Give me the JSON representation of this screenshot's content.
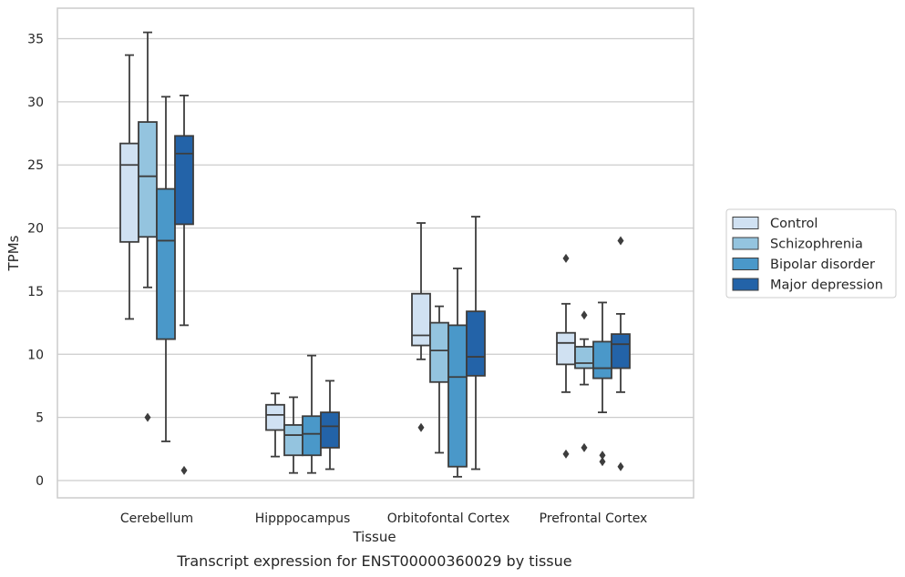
{
  "chart_data": {
    "type": "boxplot",
    "caption": "Transcript expression for ENST00000360029 by tissue",
    "xlabel": "Tissue",
    "ylabel": "TPMs",
    "ylim": [
      -1.4,
      37.3
    ],
    "yticks": [
      0,
      5,
      10,
      15,
      20,
      25,
      30,
      35
    ],
    "grid": "horizontal",
    "legend_position": "right",
    "categories": [
      "Cerebellum",
      "Hipppocampus",
      "Orbitofontal Cortex",
      "Prefrontal Cortex"
    ],
    "series": [
      {
        "name": "Control",
        "color": "#d0e1f2",
        "boxes": [
          {
            "whisker_low": 12.8,
            "q1": 18.9,
            "median": 25.0,
            "q3": 26.7,
            "whisker_high": 33.7,
            "outliers": []
          },
          {
            "whisker_low": 1.9,
            "q1": 4.0,
            "median": 5.2,
            "q3": 6.0,
            "whisker_high": 6.9,
            "outliers": []
          },
          {
            "whisker_low": 9.6,
            "q1": 10.7,
            "median": 11.5,
            "q3": 14.8,
            "whisker_high": 20.4,
            "outliers": [
              4.2
            ]
          },
          {
            "whisker_low": 7.0,
            "q1": 9.2,
            "median": 10.9,
            "q3": 11.7,
            "whisker_high": 14.0,
            "outliers": [
              17.6,
              2.1
            ]
          }
        ]
      },
      {
        "name": "Schizophrenia",
        "color": "#94c4df",
        "boxes": [
          {
            "whisker_low": 15.3,
            "q1": 19.3,
            "median": 24.1,
            "q3": 28.4,
            "whisker_high": 35.5,
            "outliers": [
              5.0
            ]
          },
          {
            "whisker_low": 0.6,
            "q1": 2.0,
            "median": 3.6,
            "q3": 4.4,
            "whisker_high": 6.6,
            "outliers": []
          },
          {
            "whisker_low": 2.2,
            "q1": 7.8,
            "median": 10.3,
            "q3": 12.5,
            "whisker_high": 13.8,
            "outliers": []
          },
          {
            "whisker_low": 7.6,
            "q1": 8.9,
            "median": 9.3,
            "q3": 10.6,
            "whisker_high": 11.2,
            "outliers": [
              13.1,
              2.6
            ]
          }
        ]
      },
      {
        "name": "Bipolar disorder",
        "color": "#4a98c9",
        "boxes": [
          {
            "whisker_low": 3.1,
            "q1": 11.2,
            "median": 19.0,
            "q3": 23.1,
            "whisker_high": 30.4,
            "outliers": []
          },
          {
            "whisker_low": 0.6,
            "q1": 2.0,
            "median": 3.7,
            "q3": 5.1,
            "whisker_high": 9.9,
            "outliers": []
          },
          {
            "whisker_low": 0.3,
            "q1": 1.1,
            "median": 8.2,
            "q3": 12.3,
            "whisker_high": 16.8,
            "outliers": []
          },
          {
            "whisker_low": 5.4,
            "q1": 8.1,
            "median": 8.9,
            "q3": 11.0,
            "whisker_high": 14.1,
            "outliers": [
              2.0,
              1.5
            ]
          }
        ]
      },
      {
        "name": "Major depression",
        "color": "#2363a8",
        "boxes": [
          {
            "whisker_low": 12.3,
            "q1": 20.3,
            "median": 25.9,
            "q3": 27.3,
            "whisker_high": 30.5,
            "outliers": [
              0.8
            ]
          },
          {
            "whisker_low": 0.9,
            "q1": 2.6,
            "median": 4.3,
            "q3": 5.4,
            "whisker_high": 7.9,
            "outliers": []
          },
          {
            "whisker_low": 0.9,
            "q1": 8.3,
            "median": 9.8,
            "q3": 13.4,
            "whisker_high": 20.9,
            "outliers": []
          },
          {
            "whisker_low": 7.0,
            "q1": 8.9,
            "median": 10.8,
            "q3": 11.6,
            "whisker_high": 13.2,
            "outliers": [
              19.0,
              1.1
            ]
          }
        ]
      }
    ]
  }
}
